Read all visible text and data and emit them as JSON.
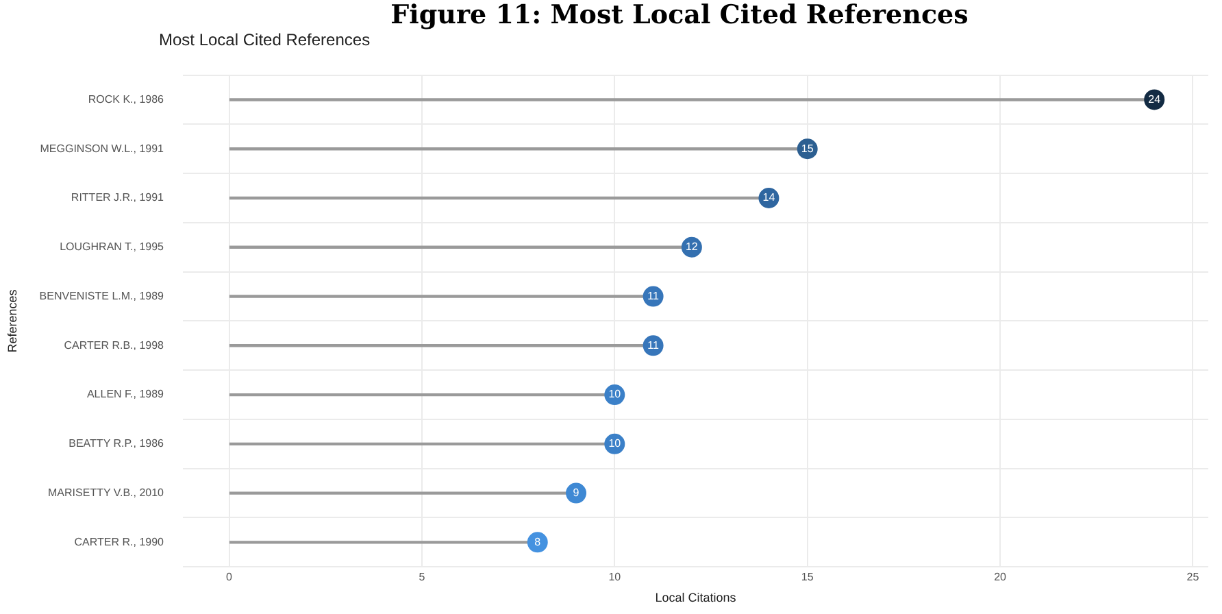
{
  "chart_data": {
    "type": "lollipop",
    "title": "Figure 11: Most Local Cited References",
    "subtitle": "Most Local Cited References",
    "xlabel": "Local Citations",
    "ylabel": "References",
    "orientation": "horizontal",
    "categories": [
      "ROCK K., 1986",
      "MEGGINSON W.L., 1991",
      "RITTER J.R., 1991",
      "LOUGHRAN T., 1995",
      "BENVENISTE L.M., 1989",
      "CARTER R.B., 1998",
      "ALLEN F., 1989",
      "BEATTY R.P., 1986",
      "MARISETTY V.B., 2010",
      "CARTER R., 1990"
    ],
    "values": [
      24,
      15,
      14,
      12,
      11,
      11,
      10,
      10,
      9,
      8
    ],
    "colors": [
      "#132b43",
      "#2c5f91",
      "#2f66a0",
      "#3470b0",
      "#3776ba",
      "#3776ba",
      "#3b80c8",
      "#3b80c8",
      "#3f89d4",
      "#4592e0"
    ],
    "xlim": [
      -1.2,
      25.4
    ],
    "xticks": [
      0,
      5,
      10,
      15,
      20,
      25
    ],
    "grid": true,
    "legend": false,
    "marker": "circle",
    "data_labels": true
  }
}
